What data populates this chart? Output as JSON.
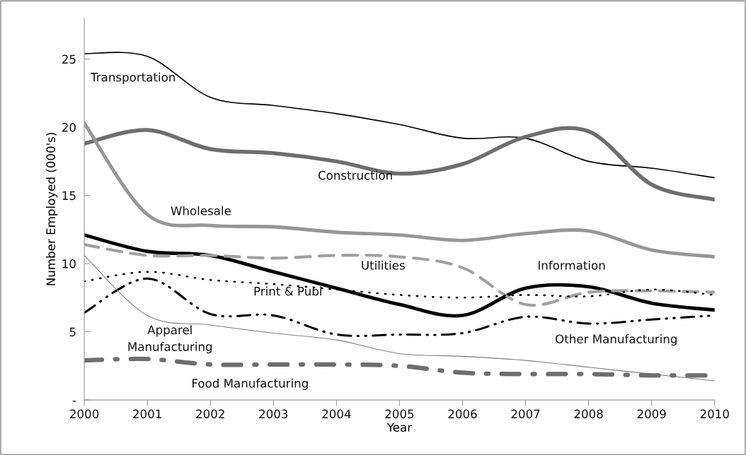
{
  "chart_data": {
    "type": "line",
    "xlabel": "Year",
    "ylabel": "Number Employed (000's)",
    "x": [
      2000,
      2001,
      2002,
      2003,
      2004,
      2005,
      2006,
      2007,
      2008,
      2009,
      2010
    ],
    "xlim": [
      2000,
      2010
    ],
    "xticks": [
      2000,
      2001,
      2002,
      2003,
      2004,
      2005,
      2006,
      2007,
      2008,
      2009,
      2010
    ],
    "ylim": [
      0,
      28
    ],
    "yticks": [
      {
        "value": 0,
        "label": "-"
      },
      5,
      10,
      15,
      20,
      25
    ],
    "grid": false,
    "legend": false,
    "marker": "none",
    "series": [
      {
        "name": "Transportation",
        "color": "#000000",
        "line_style": "solid",
        "values": [
          25.4,
          25.2,
          22.2,
          21.6,
          21.0,
          20.2,
          19.2,
          19.2,
          17.5,
          17.0,
          16.3
        ]
      },
      {
        "name": "Construction",
        "color": "#6e6e6e",
        "line_style": "solid",
        "values": [
          18.8,
          19.8,
          18.4,
          18.1,
          17.5,
          16.6,
          17.3,
          19.3,
          19.7,
          15.8,
          14.7
        ]
      },
      {
        "name": "Wholesale",
        "color": "#969696",
        "line_style": "solid",
        "values": [
          20.3,
          13.6,
          12.8,
          12.7,
          12.3,
          12.1,
          11.7,
          12.2,
          12.4,
          11.0,
          10.5
        ]
      },
      {
        "name": "Information",
        "color": "#000000",
        "line_style": "solid",
        "values": [
          12.1,
          10.9,
          10.6,
          9.4,
          8.2,
          7.0,
          6.2,
          8.2,
          8.3,
          7.1,
          6.6
        ]
      },
      {
        "name": "Utilities",
        "color": "#a0a0a0",
        "line_style": "dashed",
        "values": [
          11.4,
          10.6,
          10.6,
          10.4,
          10.6,
          10.5,
          9.7,
          7.0,
          7.9,
          8.0,
          7.9
        ]
      },
      {
        "name": "Print & Publ",
        "color": "#000000",
        "line_style": "dotted",
        "values": [
          8.7,
          9.4,
          8.8,
          8.5,
          8.1,
          7.7,
          7.5,
          7.7,
          7.6,
          8.1,
          7.7
        ]
      },
      {
        "name": "Other Manufacturing",
        "color": "#000000",
        "line_style": "dashdotdot",
        "values": [
          6.4,
          8.9,
          6.3,
          6.2,
          4.8,
          4.8,
          4.9,
          6.1,
          5.6,
          5.9,
          6.2
        ]
      },
      {
        "name": "Apparel Manufacturing",
        "color": "#7f7f7f",
        "line_style": "solid",
        "values": [
          10.6,
          6.2,
          5.5,
          4.9,
          4.4,
          3.4,
          3.2,
          2.9,
          2.4,
          1.9,
          1.4
        ]
      },
      {
        "name": "Food Manufacturing",
        "color": "#6e6e6e",
        "line_style": "dashdot",
        "values": [
          2.9,
          3.0,
          2.6,
          2.6,
          2.6,
          2.5,
          2.0,
          1.9,
          1.9,
          1.8,
          1.8
        ]
      }
    ]
  }
}
